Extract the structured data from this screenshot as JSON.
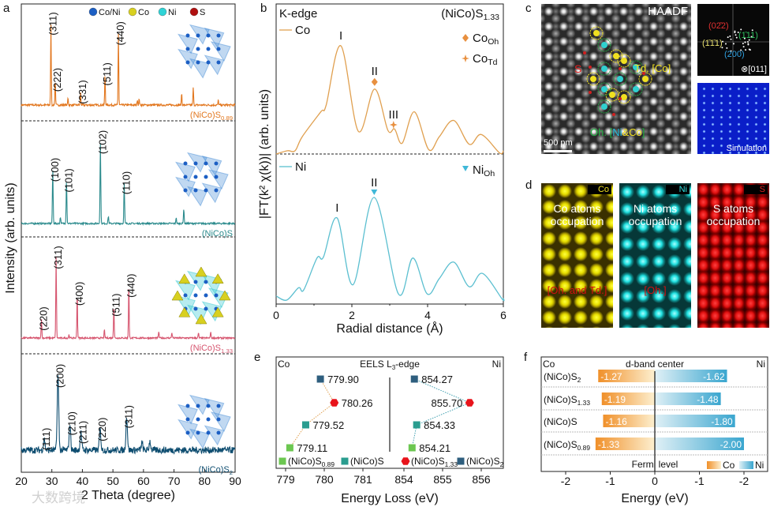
{
  "panel_labels": {
    "a": "a",
    "b": "b",
    "c": "c",
    "d": "d",
    "e": "e",
    "f": "f"
  },
  "watermark": "大数跨境",
  "chart_data": [
    {
      "id": "a",
      "type": "line",
      "title": "",
      "xlabel": "2 Theta (degree)",
      "ylabel": "Intensity (arb. units)",
      "xlim": [
        20,
        90
      ],
      "xticks": [
        20,
        30,
        40,
        50,
        60,
        70,
        80,
        90
      ],
      "grid": false,
      "legend": [
        {
          "label": "Co/Ni",
          "color": "#1c5fc4"
        },
        {
          "label": "Co",
          "color": "#d8d020"
        },
        {
          "label": "Ni",
          "color": "#2fd3d6"
        },
        {
          "label": "S",
          "color": "#b01010"
        }
      ],
      "legend_position": "top-right",
      "series": [
        {
          "name": "(NiCo)S",
          "sub": "0.89",
          "color": "#e2771f",
          "peak_width": 0.15,
          "noise": 0.025,
          "peaks": [
            {
              "x": 29.7,
              "y": 1.0,
              "label": "(311)"
            },
            {
              "x": 31.1,
              "y": 0.31,
              "label": "(222)"
            },
            {
              "x": 35.3,
              "y": 0.09
            },
            {
              "x": 39.4,
              "y": 0.16,
              "label": "(331)"
            },
            {
              "x": 47.4,
              "y": 0.38,
              "label": "(511)"
            },
            {
              "x": 51.8,
              "y": 0.88,
              "label": "(440)"
            },
            {
              "x": 58.0,
              "y": 0.07
            },
            {
              "x": 58.6,
              "y": 0.08
            },
            {
              "x": 72.5,
              "y": 0.15
            },
            {
              "x": 76.3,
              "y": 0.22
            },
            {
              "x": 84.5,
              "y": 0.06
            }
          ]
        },
        {
          "name": "(NiCo)S",
          "sub": "",
          "color": "#2a8a8c",
          "peak_width": 0.17,
          "noise": 0.02,
          "peaks": [
            {
              "x": 30.3,
              "y": 0.66,
              "label": "(100)"
            },
            {
              "x": 32.8,
              "y": 0.08
            },
            {
              "x": 34.8,
              "y": 0.53,
              "label": "(101)"
            },
            {
              "x": 45.9,
              "y": 1.0,
              "label": "(102)"
            },
            {
              "x": 48.5,
              "y": 0.09
            },
            {
              "x": 53.7,
              "y": 0.5,
              "label": "(110)"
            },
            {
              "x": 70.7,
              "y": 0.07
            },
            {
              "x": 73.2,
              "y": 0.18
            }
          ]
        },
        {
          "name": "(NiCo)S",
          "sub": "1.33",
          "color": "#d6546e",
          "peak_width": 0.16,
          "noise": 0.02,
          "peaks": [
            {
              "x": 26.6,
              "y": 0.24,
              "label": "(220)"
            },
            {
              "x": 31.4,
              "y": 1.0,
              "label": "(311)"
            },
            {
              "x": 35.6,
              "y": 0.04
            },
            {
              "x": 38.3,
              "y": 0.55,
              "label": "(400)"
            },
            {
              "x": 47.2,
              "y": 0.1
            },
            {
              "x": 50.3,
              "y": 0.41,
              "label": "(511)"
            },
            {
              "x": 55.2,
              "y": 0.65,
              "label": "(440)"
            },
            {
              "x": 65.0,
              "y": 0.08
            },
            {
              "x": 69.3,
              "y": 0.07
            },
            {
              "x": 78.0,
              "y": 0.06
            },
            {
              "x": 82.0,
              "y": 0.08
            }
          ]
        },
        {
          "name": "(NiCo)S",
          "sub": "2",
          "color": "#0e4d70",
          "peak_width": 0.35,
          "noise": 0.09,
          "peaks": [
            {
              "x": 27.5,
              "y": 0.15,
              "label": "(111)"
            },
            {
              "x": 32.0,
              "y": 1.0,
              "label": "(200)"
            },
            {
              "x": 35.9,
              "y": 0.36,
              "label": "(210)"
            },
            {
              "x": 39.5,
              "y": 0.24,
              "label": "(211)"
            },
            {
              "x": 45.8,
              "y": 0.28,
              "label": "(220)"
            },
            {
              "x": 54.5,
              "y": 0.45,
              "label": "(311)"
            },
            {
              "x": 59.5,
              "y": 0.1
            },
            {
              "x": 62.1,
              "y": 0.12
            }
          ]
        }
      ]
    },
    {
      "id": "b",
      "type": "line",
      "title": "K-edge",
      "compound": "(NiCo)S",
      "compound_sub": "1.33",
      "xlabel": "Radial distance (Å)",
      "ylabel": "|FT(k² χ(k))| (arb. units)",
      "xlim": [
        0,
        6
      ],
      "xticks": [
        0,
        2,
        4,
        6
      ],
      "series": [
        {
          "name": "Co",
          "color": "#e0a050",
          "points": [
            [
              0,
              0
            ],
            [
              0.3,
              0.03
            ],
            [
              0.5,
              0.03
            ],
            [
              0.69,
              0.16
            ],
            [
              1.18,
              0.39
            ],
            [
              1.32,
              0.45
            ],
            [
              1.71,
              1.0
            ],
            [
              2.17,
              0.21
            ],
            [
              2.6,
              0.6
            ],
            [
              2.95,
              0.22
            ],
            [
              3.13,
              0.23
            ],
            [
              3.33,
              0.1
            ],
            [
              3.65,
              0.39
            ],
            [
              4.03,
              0.04
            ],
            [
              4.31,
              0.16
            ],
            [
              4.69,
              0.31
            ],
            [
              5.1,
              0.09
            ],
            [
              5.42,
              0.18
            ],
            [
              5.9,
              0.01
            ],
            [
              6.0,
              0.03
            ]
          ],
          "peak_labels": [
            {
              "x": 1.71,
              "label": "I"
            },
            {
              "x": 2.6,
              "label": "II",
              "marker": "diamond"
            },
            {
              "x": 3.1,
              "label": "III",
              "marker": "star"
            }
          ],
          "markers": [
            {
              "symbol": "diamond",
              "label": "Co",
              "sub": "Oh"
            },
            {
              "symbol": "star",
              "label": "Co",
              "sub": "Td"
            }
          ]
        },
        {
          "name": "Ni",
          "color": "#5bbfd0",
          "points": [
            [
              0,
              0.04
            ],
            [
              0.28,
              0.0
            ],
            [
              0.59,
              0.12
            ],
            [
              0.73,
              0.1
            ],
            [
              1.08,
              0.41
            ],
            [
              1.25,
              0.42
            ],
            [
              1.61,
              0.8
            ],
            [
              2.03,
              0.15
            ],
            [
              2.59,
              1.0
            ],
            [
              3.23,
              0.06
            ],
            [
              3.61,
              0.41
            ],
            [
              3.99,
              0.06
            ],
            [
              4.31,
              0.21
            ],
            [
              4.69,
              0.37
            ],
            [
              5.1,
              0.13
            ],
            [
              5.45,
              0.26
            ],
            [
              5.97,
              0.01
            ],
            [
              6.0,
              0.02
            ]
          ],
          "peak_labels": [
            {
              "x": 1.61,
              "label": "I"
            },
            {
              "x": 2.59,
              "label": "II",
              "marker": "triangle"
            }
          ],
          "markers": [
            {
              "symbol": "triangle",
              "label": "Ni",
              "sub": "Oh"
            }
          ]
        }
      ]
    },
    {
      "id": "e",
      "type": "scatter",
      "title": "EELS L",
      "title_sub": "3",
      "title_suffix": "-edge",
      "left_label": "Co",
      "right_label": "Ni",
      "xlabel": "Energy Loss (eV)",
      "xticks_left": [
        779,
        780,
        781
      ],
      "xticks_right": [
        854,
        855,
        856
      ],
      "series": [
        {
          "name": "(NiCo)S",
          "sub": "0.89",
          "color": "#6cc751",
          "shape": "square",
          "co": 779.11,
          "ni": 854.21
        },
        {
          "name": "(NiCo)S",
          "sub": "",
          "color": "#2a9d8f",
          "shape": "square",
          "co": 779.52,
          "ni": 854.33
        },
        {
          "name": "(NiCo)S",
          "sub": "1.33",
          "color": "#e8141b",
          "shape": "hexagon",
          "co": 780.26,
          "ni": 855.7
        },
        {
          "name": "(NiCo)S",
          "sub": "2",
          "color": "#2e5e7e",
          "shape": "square",
          "co": 779.9,
          "ni": 854.27
        }
      ],
      "co_labels": [
        "779.11",
        "779.52",
        "780.26",
        "779.90"
      ],
      "ni_labels": [
        "854.21",
        "854.33",
        "855.70",
        "854.27"
      ]
    },
    {
      "id": "f",
      "type": "bar",
      "title": "d-band center",
      "left_label": "Co",
      "right_label": "Ni",
      "xlabel": "Energy (eV)",
      "xticks": [
        "-2",
        "-1",
        "0",
        "-1",
        "-2"
      ],
      "fermi_label": "Fermi level",
      "legend": [
        {
          "label": "Co",
          "color": "#f0a050"
        },
        {
          "label": "Ni",
          "color": "#40a8d0"
        }
      ],
      "categories": [
        {
          "name": "(NiCo)S",
          "sub": "2"
        },
        {
          "name": "(NiCo)S",
          "sub": "1.33"
        },
        {
          "name": "(NiCo)S",
          "sub": ""
        },
        {
          "name": "(NiCo)S",
          "sub": "0.89"
        }
      ],
      "co": [
        -1.27,
        -1.19,
        -1.16,
        -1.33
      ],
      "ni": [
        -1.62,
        -1.48,
        -1.8,
        -2.0
      ],
      "co_labels": [
        "-1.27",
        "-1.19",
        "-1.16",
        "-1.33"
      ],
      "ni_labels": [
        "-1.62",
        "-1.48",
        "-1.80",
        "-2.00"
      ]
    }
  ],
  "panel_c": {
    "haadf": "HAADF",
    "s": "S",
    "td_a": "Td. [",
    "td_b": "Co",
    "td_c": "]",
    "oh_a": "Oh. [",
    "oh_b": "Ni",
    "oh_amp": "&",
    "oh_c": "Co",
    "oh_d": "]",
    "scale": "500 pm",
    "fft_red": "(02̄2)",
    "fft_green": "(1̄11)",
    "fft_yellow": "(1̄1̄1)",
    "fft_blue": "(200)",
    "zone": "⊗[011]",
    "sim": "Simulation"
  },
  "panel_d": {
    "co_tag": "Co",
    "ni_tag": "Ni",
    "s_tag": "S",
    "co_occ1": "Co atoms",
    "co_occ2": "occupation",
    "co_site": "[Oh. and Td.]",
    "ni_occ1": "Ni atoms",
    "ni_occ2": "occupation",
    "ni_site": "[Oh.]",
    "s_occ1": "S atoms",
    "s_occ2": "occupation"
  }
}
